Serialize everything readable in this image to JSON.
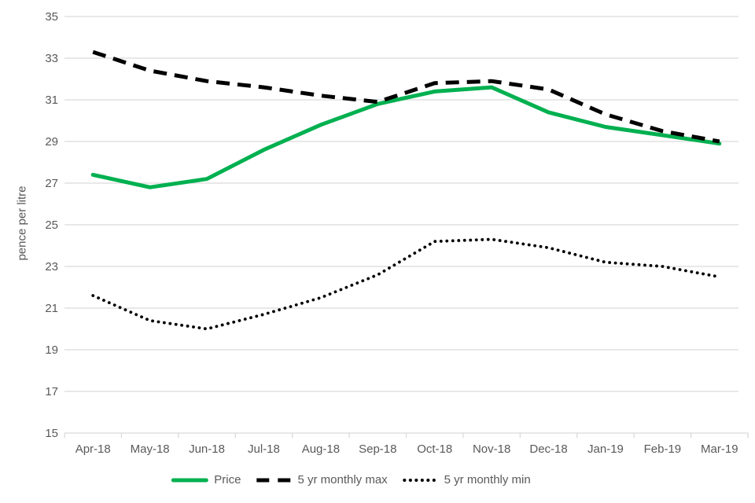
{
  "chart_data": {
    "type": "line",
    "title": "",
    "xlabel": "",
    "ylabel": "pence per litre",
    "categories": [
      "Apr-18",
      "May-18",
      "Jun-18",
      "Jul-18",
      "Aug-18",
      "Sep-18",
      "Oct-18",
      "Nov-18",
      "Dec-18",
      "Jan-19",
      "Feb-19",
      "Mar-19"
    ],
    "series": [
      {
        "name": "Price",
        "color": "#00b050",
        "style": "solid",
        "values": [
          27.4,
          26.8,
          27.2,
          28.6,
          29.8,
          30.8,
          31.4,
          31.6,
          30.4,
          29.7,
          29.3,
          28.9
        ]
      },
      {
        "name": "5 yr monthly max",
        "color": "#000000",
        "style": "dashed",
        "values": [
          33.3,
          32.4,
          31.9,
          31.6,
          31.2,
          30.9,
          31.8,
          31.9,
          31.5,
          30.3,
          29.5,
          29.0
        ]
      },
      {
        "name": "5 yr monthly min",
        "color": "#000000",
        "style": "dotted",
        "values": [
          21.6,
          20.4,
          20.0,
          20.7,
          21.5,
          22.6,
          24.2,
          24.3,
          23.9,
          23.2,
          23.0,
          22.5
        ]
      }
    ],
    "ylim": [
      15,
      35
    ],
    "ytick_step": 2,
    "grid": true,
    "legend_position": "bottom"
  },
  "colors": {
    "background": "#ffffff",
    "gridline": "#d9d9d9",
    "axis_text": "#595959"
  }
}
